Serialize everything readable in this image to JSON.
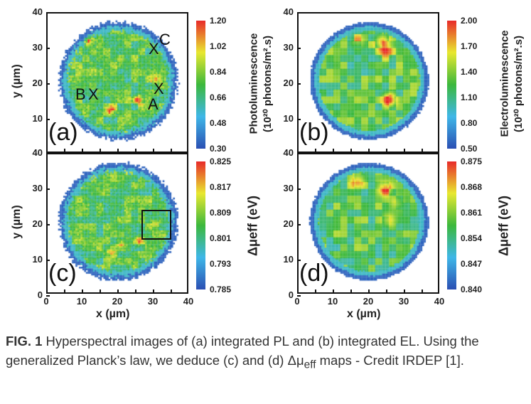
{
  "chart_data": [
    {
      "type": "heatmap",
      "panel_label": "(a)",
      "ylabel": "y (µm)",
      "xlim": [
        0,
        40
      ],
      "ylim": [
        0,
        40
      ],
      "y_ticks": [
        "40",
        "30",
        "20",
        "10"
      ],
      "colorbar": {
        "title": "Photoluminescence",
        "unit": "(10²⁰ photons/m².s)",
        "ticks": [
          "1.20",
          "1.02",
          "0.84",
          "0.66",
          "0.48",
          "0.30"
        ],
        "range": [
          0.3,
          1.2
        ]
      },
      "markers": [
        "C",
        "X",
        "X",
        "A",
        "B",
        "X"
      ]
    },
    {
      "type": "heatmap",
      "panel_label": "(b)",
      "xlim": [
        0,
        40
      ],
      "ylim": [
        0,
        40
      ],
      "y_ticks": [
        "40",
        "30",
        "20",
        "10"
      ],
      "colorbar": {
        "title": "Electroluminescence",
        "unit": "(10²⁰ photons/m².s)",
        "ticks": [
          "2.00",
          "1.70",
          "1.40",
          "1.10",
          "0.80",
          "0.50"
        ],
        "range": [
          0.5,
          2.0
        ]
      }
    },
    {
      "type": "heatmap",
      "panel_label": "(c)",
      "xlabel": "x (µm)",
      "ylabel": "y (µm)",
      "xlim": [
        0,
        40
      ],
      "ylim": [
        0,
        40
      ],
      "x_ticks": [
        "0",
        "10",
        "20",
        "30",
        "40"
      ],
      "y_ticks": [
        "40",
        "30",
        "20",
        "10",
        "0"
      ],
      "colorbar": {
        "title": "Δμeff (eV)",
        "ticks": [
          "0.825",
          "0.817",
          "0.809",
          "0.801",
          "0.793",
          "0.785"
        ],
        "range": [
          0.785,
          0.825
        ]
      }
    },
    {
      "type": "heatmap",
      "panel_label": "(d)",
      "xlabel": "x (µm)",
      "xlim": [
        0,
        40
      ],
      "ylim": [
        0,
        40
      ],
      "x_ticks": [
        "0",
        "10",
        "20",
        "30",
        "40"
      ],
      "y_ticks": [
        "40",
        "30",
        "20",
        "10",
        "0"
      ],
      "colorbar": {
        "title": "Δμeff (eV)",
        "ticks": [
          "0.875",
          "0.868",
          "0.861",
          "0.854",
          "0.847",
          "0.840"
        ],
        "range": [
          0.84,
          0.875
        ]
      }
    }
  ],
  "colormap": [
    "#2b4fb3",
    "#3fb7e8",
    "#3cb83c",
    "#e8e830",
    "#e82a2a"
  ],
  "caption": {
    "fig": "FIG. 1",
    "text": " Hyperspectral images of (a) integrated PL and (b) integrated EL. Using the generalized Planck’s law, we deduce (c) and (d) Δμ",
    "sub": "eff",
    "tail": " maps - Credit IRDEP [1]."
  }
}
